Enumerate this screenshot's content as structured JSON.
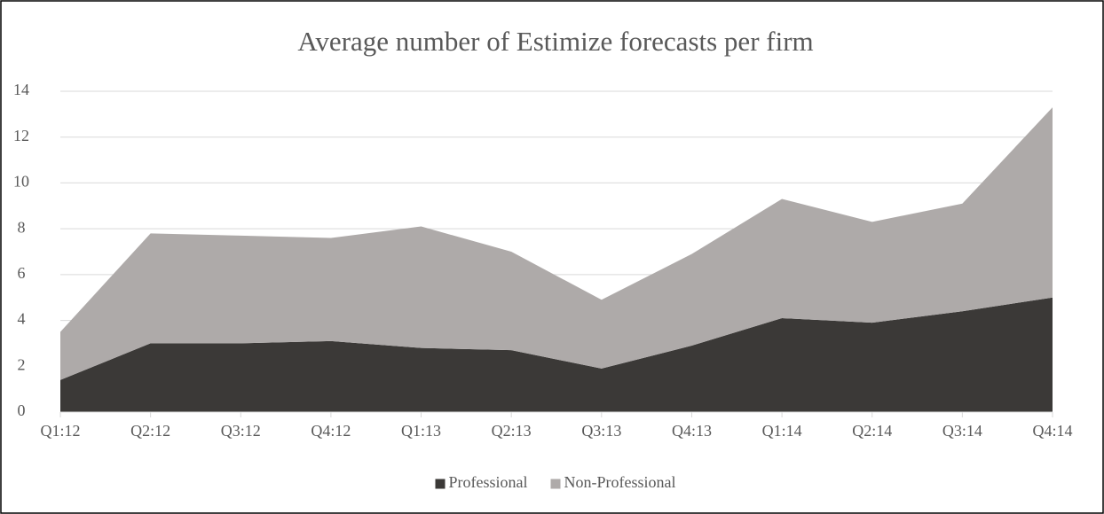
{
  "chart_data": {
    "type": "stacked_area",
    "title": "Average number of Estimize forecasts per firm",
    "categories": [
      "Q1:12",
      "Q2:12",
      "Q3:12",
      "Q4:12",
      "Q1:13",
      "Q2:13",
      "Q3:13",
      "Q4:13",
      "Q1:14",
      "Q2:14",
      "Q3:14",
      "Q4:14"
    ],
    "series": [
      {
        "name": "Professional",
        "color": "#3b3937",
        "values": [
          1.4,
          3.0,
          3.0,
          3.1,
          2.8,
          2.7,
          1.9,
          2.9,
          4.1,
          3.9,
          4.4,
          5.0
        ]
      },
      {
        "name": "Non-Professional",
        "color": "#aeaaa9",
        "values": [
          2.1,
          4.8,
          4.7,
          4.5,
          5.3,
          4.3,
          3.0,
          4.0,
          5.2,
          4.4,
          4.7,
          8.3
        ]
      }
    ],
    "ylim": [
      0,
      14
    ],
    "yticks": [
      0,
      2,
      4,
      6,
      8,
      10,
      12,
      14
    ],
    "grid": true,
    "legend": "bottom"
  }
}
